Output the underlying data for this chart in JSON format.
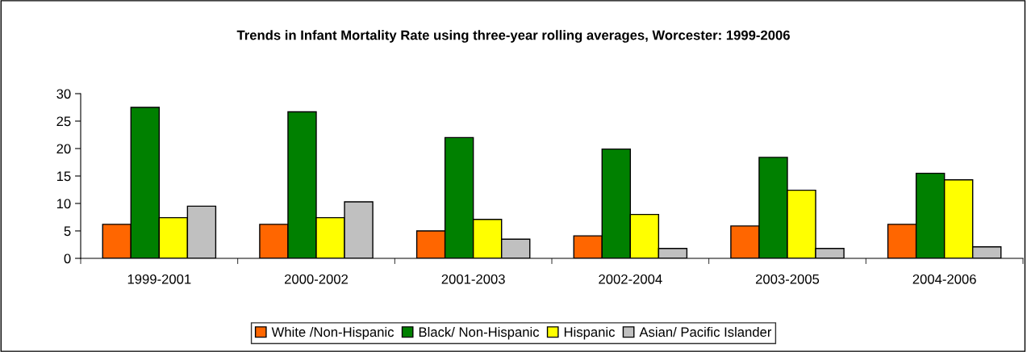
{
  "chart_data": {
    "type": "bar",
    "title": "Trends in Infant Mortality Rate using three-year rolling averages, Worcester: 1999-2006",
    "categories": [
      "1999-2001",
      "2000-2002",
      "2001-2003",
      "2002-2004",
      "2003-2005",
      "2004-2006"
    ],
    "series": [
      {
        "name": "White /Non-Hispanic",
        "color": "#ff6600",
        "values": [
          6.2,
          6.2,
          5.0,
          4.1,
          5.9,
          6.2
        ]
      },
      {
        "name": "Black/ Non-Hispanic",
        "color": "#008000",
        "values": [
          27.5,
          26.7,
          22.0,
          19.9,
          18.4,
          15.5
        ]
      },
      {
        "name": "Hispanic",
        "color": "#ffff00",
        "values": [
          7.4,
          7.4,
          7.1,
          8.0,
          12.4,
          14.3
        ]
      },
      {
        "name": "Asian/ Pacific Islander",
        "color": "#c0c0c0",
        "values": [
          9.5,
          10.3,
          3.5,
          1.8,
          1.8,
          2.1
        ]
      }
    ],
    "ylim": [
      0,
      30
    ],
    "yticks": [
      0,
      5,
      10,
      15,
      20,
      25,
      30
    ],
    "grid": false,
    "legend": "bottom"
  }
}
